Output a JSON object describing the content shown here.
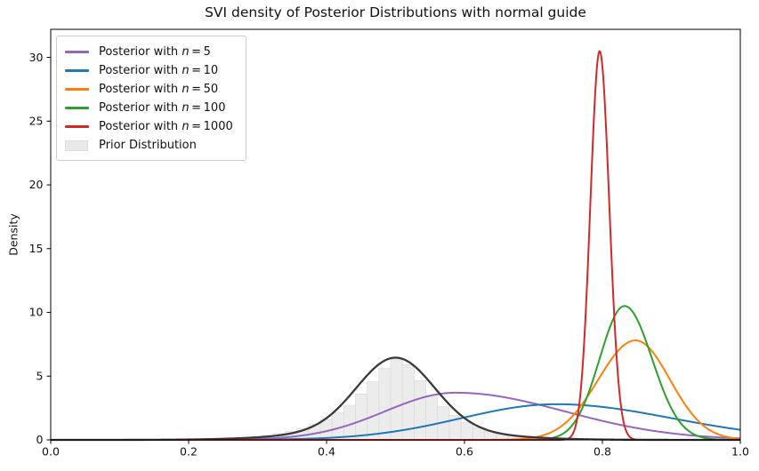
{
  "title": "SVI density of Posterior Distributions with normal guide",
  "axes": {
    "ylabel": "Density",
    "xlabel": "",
    "xlim": [
      0.0,
      1.0
    ],
    "ylim": [
      0,
      32.2
    ],
    "xticks": [
      "0.0",
      "0.2",
      "0.4",
      "0.6",
      "0.8",
      "1.0"
    ],
    "xtick_values": [
      0.0,
      0.2,
      0.4,
      0.6,
      0.8,
      1.0
    ],
    "yticks": [
      "0",
      "5",
      "10",
      "15",
      "20",
      "25",
      "30"
    ],
    "ytick_values": [
      0,
      5,
      10,
      15,
      20,
      25,
      30
    ],
    "spine_color": "#000000",
    "grid": "off"
  },
  "legend": {
    "position": "upper-left",
    "items": [
      {
        "label": "Posterior with n = 5",
        "swatch": "line",
        "color": "#9467bd"
      },
      {
        "label": "Posterior with n = 10",
        "swatch": "line",
        "color": "#1f77b4"
      },
      {
        "label": "Posterior with n = 50",
        "swatch": "line",
        "color": "#ff7f0e"
      },
      {
        "label": "Posterior with n = 100",
        "swatch": "line",
        "color": "#2ca02c"
      },
      {
        "label": "Posterior with n = 1000",
        "swatch": "line",
        "color": "#d62728"
      },
      {
        "label": "Prior Distribution",
        "swatch": "patch",
        "color": "#e9e9e9",
        "edge": "#dcdcdc"
      }
    ]
  },
  "chart_data": {
    "type": "line",
    "note": "KDE density curves (normal-approximation parameters estimated from plot) plus prior sample histogram",
    "xlabel_range": [
      0.0,
      1.0
    ],
    "series": [
      {
        "label": "Posterior with n = 5",
        "color": "#9467bd",
        "linewidth": 2,
        "peak_x": 0.59,
        "peak_density": 3.7,
        "components": [
          {
            "peak": 3.7,
            "mean": 0.587,
            "sd_left": 0.102,
            "sd_right": 0.158
          }
        ]
      },
      {
        "label": "Posterior with n = 10",
        "color": "#1f77b4",
        "linewidth": 2,
        "peak_x": 0.73,
        "peak_density": 2.8,
        "components": [
          {
            "peak": 2.8,
            "mean": 0.733,
            "sd_left": 0.138,
            "sd_right": 0.168
          }
        ]
      },
      {
        "label": "Posterior with n = 50",
        "color": "#ff7f0e",
        "linewidth": 2,
        "peak_x": 0.85,
        "peak_density": 7.8,
        "components": [
          {
            "peak": 7.8,
            "mean": 0.848,
            "sd_left": 0.054,
            "sd_right": 0.05
          }
        ]
      },
      {
        "label": "Posterior with n = 100",
        "color": "#2ca02c",
        "linewidth": 2,
        "peak_x": 0.83,
        "peak_density": 10.5,
        "components": [
          {
            "peak": 10.5,
            "mean": 0.832,
            "sd_left": 0.036,
            "sd_right": 0.04
          }
        ]
      },
      {
        "label": "Posterior with n = 1000",
        "color": "#d62728",
        "linewidth": 2,
        "peak_x": 0.8,
        "peak_density": 30.5,
        "components": [
          {
            "peak": 30.5,
            "mean": 0.796,
            "sd_left": 0.0135,
            "sd_right": 0.014
          }
        ]
      },
      {
        "label": "Prior Distribution",
        "color": "#3a3a3a",
        "linewidth": 2.3,
        "peak_x": 0.5,
        "peak_density": 6.45,
        "components": [
          {
            "peak": 5.55,
            "mean": 0.5,
            "sd_left": 0.0555,
            "sd_right": 0.0555
          },
          {
            "peak": 0.9,
            "mean": 0.5,
            "sd_left": 0.115,
            "sd_right": 0.115
          }
        ]
      }
    ],
    "prior_histogram": {
      "bin_left": 0.255,
      "bin_width": 0.017,
      "fill": "#ececec",
      "edge": "#dcdcdc",
      "heights": [
        0.1,
        0.18,
        0.25,
        0.35,
        0.5,
        0.65,
        0.9,
        1.2,
        1.6,
        2.15,
        2.7,
        3.6,
        4.55,
        5.6,
        6.33,
        5.9,
        4.65,
        3.5,
        2.6,
        1.9,
        1.35,
        0.95,
        0.65,
        0.45,
        0.3,
        0.18,
        0.12,
        0.07
      ]
    }
  }
}
